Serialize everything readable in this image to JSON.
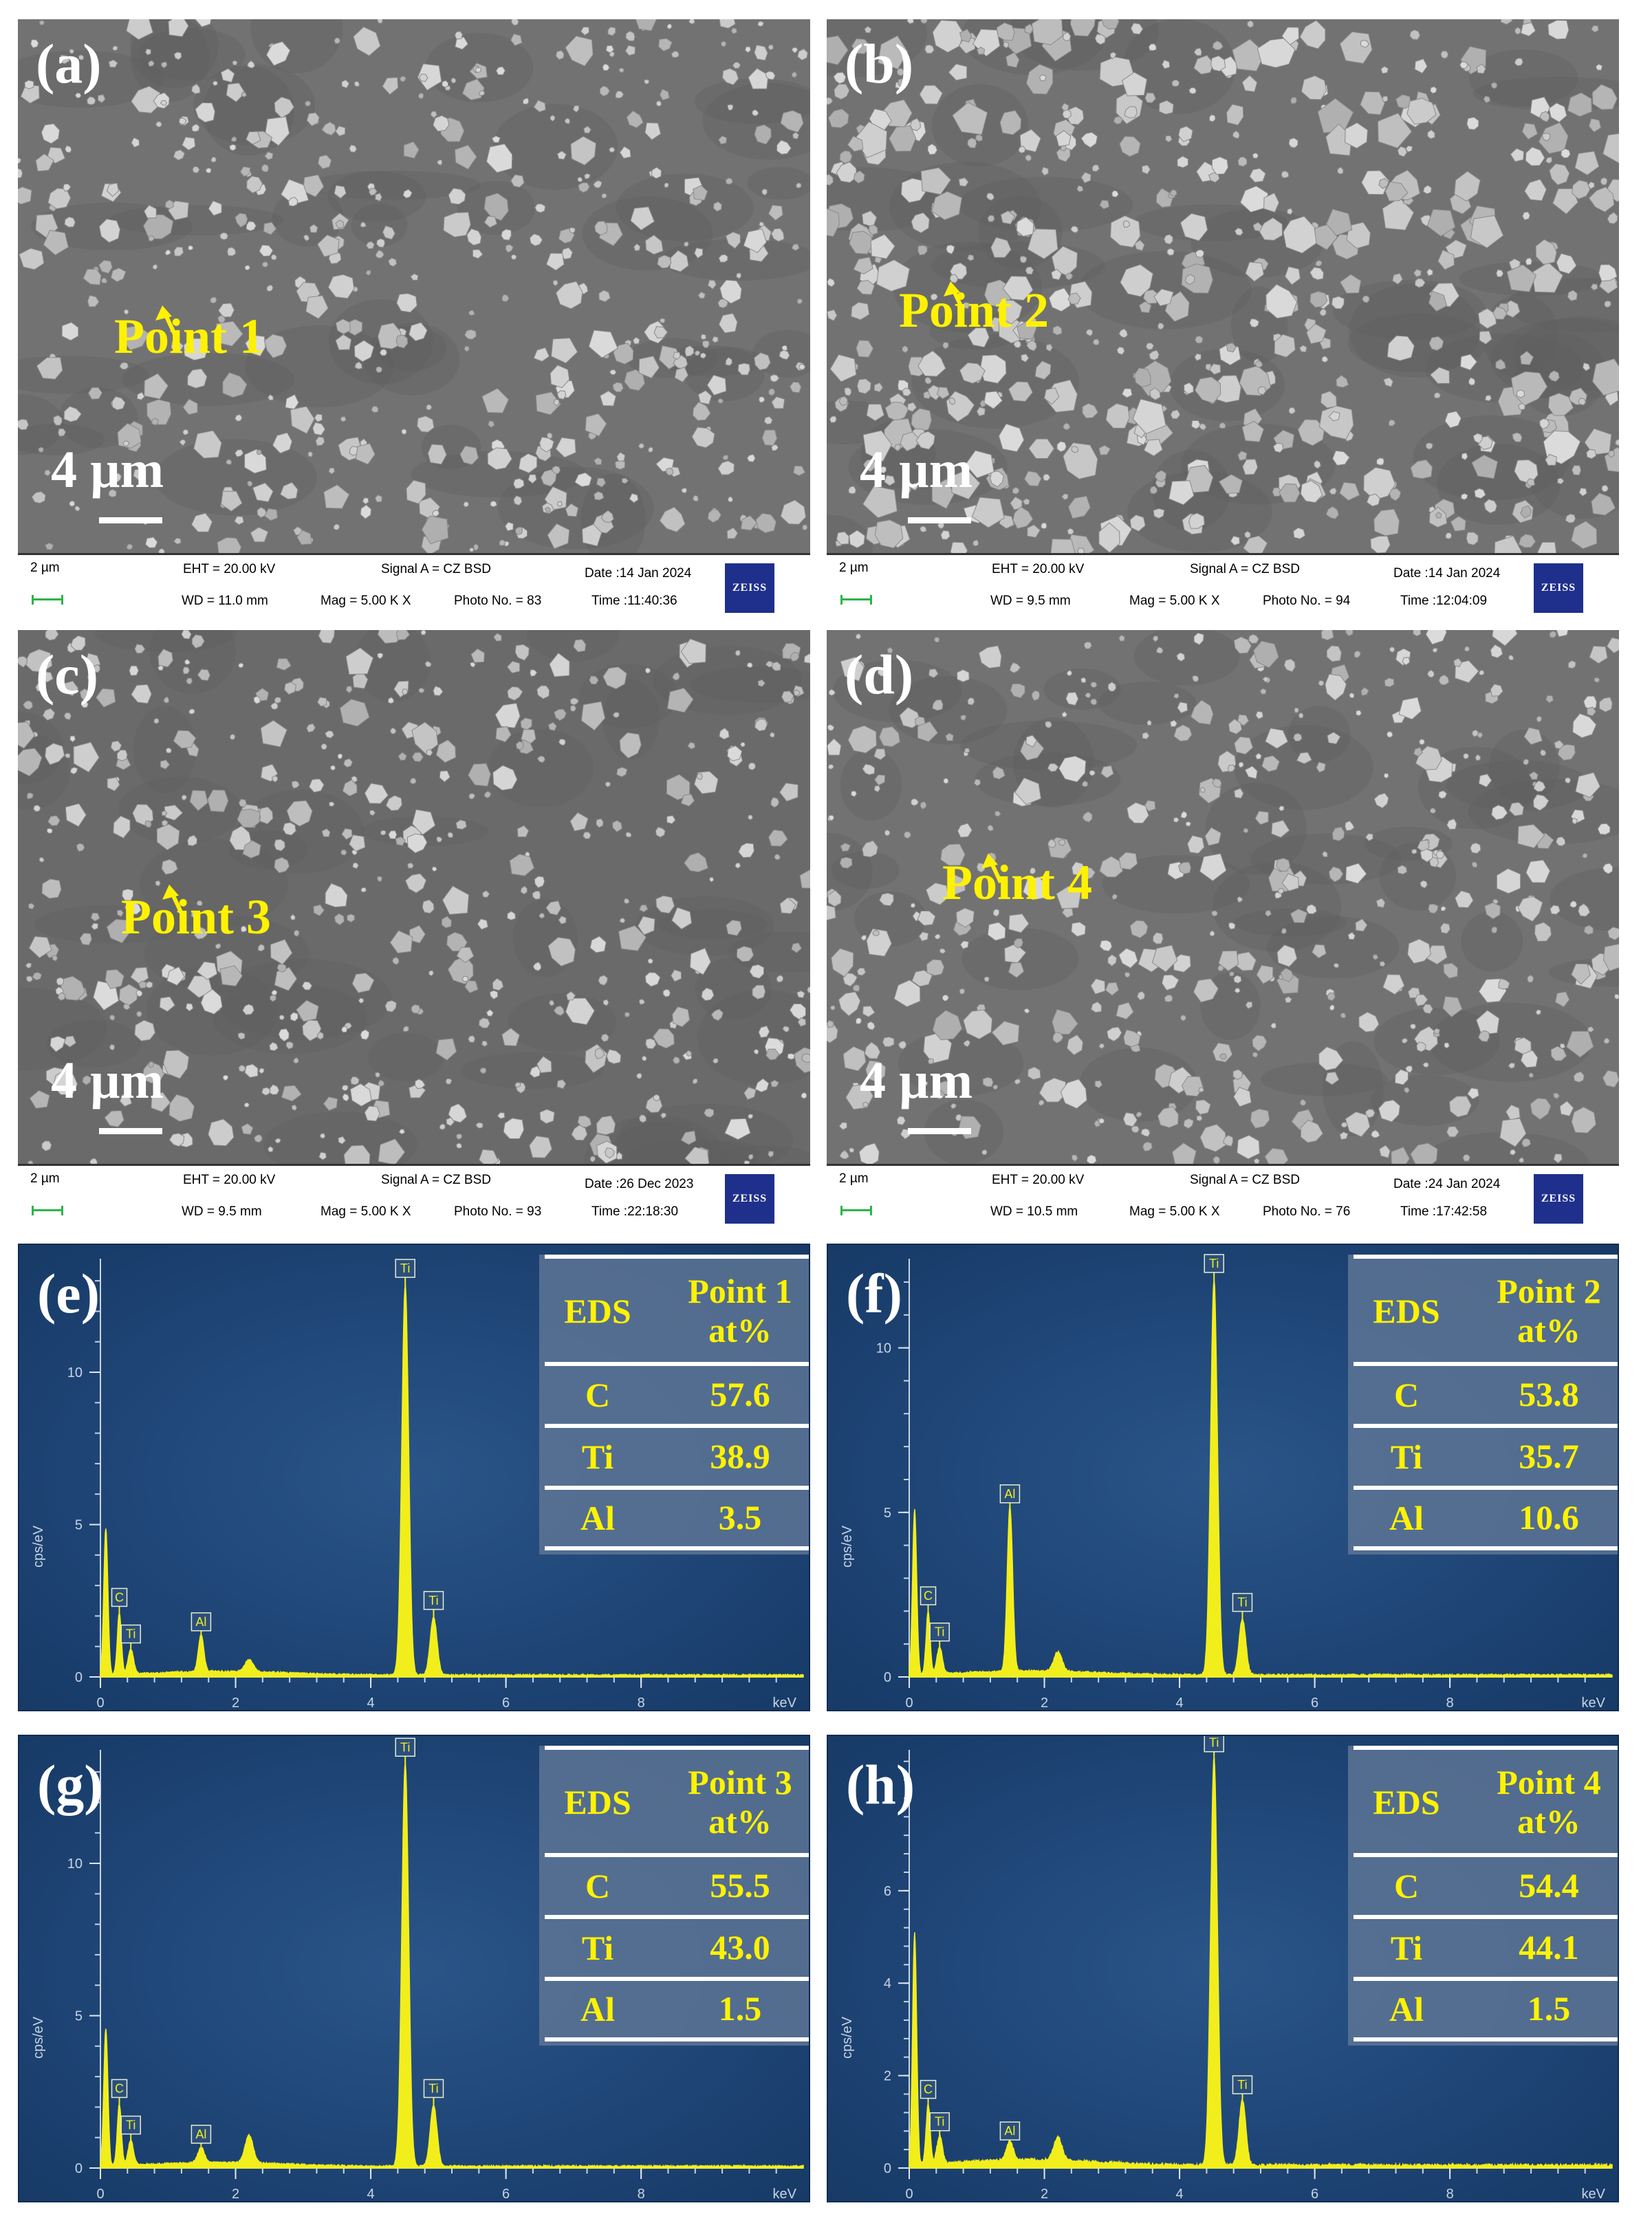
{
  "sem_panels": [
    {
      "letter": "(a)",
      "point": "Point 1",
      "scale": "4 µm",
      "info": {
        "scale": "2 µm",
        "eht": "EHT = 20.00 kV",
        "wd": "WD = 11.0 mm",
        "signal": "Signal A = CZ BSD",
        "mag": "Mag =  5.00 K X",
        "photo": "Photo No. = 83",
        "date": "Date :14 Jan 2024",
        "time": "Time :11:40:36",
        "logo": "ZEISS"
      }
    },
    {
      "letter": "(b)",
      "point": "Point 2",
      "scale": "4 µm",
      "info": {
        "scale": "2 µm",
        "eht": "EHT = 20.00 kV",
        "wd": "WD =  9.5 mm",
        "signal": "Signal A = CZ BSD",
        "mag": "Mag =  5.00 K X",
        "photo": "Photo No. = 94",
        "date": "Date :14 Jan 2024",
        "time": "Time :12:04:09",
        "logo": "ZEISS"
      }
    },
    {
      "letter": "(c)",
      "point": "Point 3",
      "scale": "4 µm",
      "info": {
        "scale": "2 µm",
        "eht": "EHT = 20.00 kV",
        "wd": "WD =  9.5 mm",
        "signal": "Signal A = CZ BSD",
        "mag": "Mag =  5.00 K X",
        "photo": "Photo No. = 93",
        "date": "Date :26 Dec 2023",
        "time": "Time :22:18:30",
        "logo": "ZEISS"
      }
    },
    {
      "letter": "(d)",
      "point": "Point 4",
      "scale": "4 µm",
      "info": {
        "scale": "2 µm",
        "eht": "EHT = 20.00 kV",
        "wd": "WD = 10.5 mm",
        "signal": "Signal A = CZ BSD",
        "mag": "Mag =  5.00 K X",
        "photo": "Photo No. = 76",
        "date": "Date :24 Jan 2024",
        "time": "Time :17:42:58",
        "logo": "ZEISS"
      }
    }
  ],
  "chart_data": [
    {
      "type": "line",
      "letter": "(e)",
      "ylabel": "cps/eV",
      "xlabel": "keV",
      "xlim": [
        0,
        10.4
      ],
      "ylim": [
        0,
        13.5
      ],
      "xticks": [
        0,
        2,
        4,
        6,
        8
      ],
      "yticks": [
        0,
        5,
        10
      ],
      "peaks": [
        {
          "x": 0.08,
          "y": 4.8,
          "w": 0.03
        },
        {
          "x": 0.28,
          "y": 2.0,
          "w": 0.03,
          "label": "C"
        },
        {
          "x": 0.45,
          "y": 0.8,
          "w": 0.04,
          "label": "Ti"
        },
        {
          "x": 1.49,
          "y": 1.2,
          "w": 0.04,
          "label": "Al"
        },
        {
          "x": 2.2,
          "y": 0.4,
          "w": 0.06
        },
        {
          "x": 4.51,
          "y": 12.8,
          "w": 0.05,
          "label": "Ti"
        },
        {
          "x": 4.93,
          "y": 1.9,
          "w": 0.05,
          "label": "Ti"
        }
      ],
      "table": {
        "header": [
          "EDS",
          "Point 1",
          "at%"
        ],
        "rows": [
          [
            "C",
            "57.6"
          ],
          [
            "Ti",
            "38.9"
          ],
          [
            "Al",
            "3.5"
          ]
        ]
      }
    },
    {
      "type": "line",
      "letter": "(f)",
      "ylabel": "cps/eV",
      "xlabel": "keV",
      "xlim": [
        0,
        10.4
      ],
      "ylim": [
        0,
        12.5
      ],
      "xticks": [
        0,
        2,
        4,
        6,
        8
      ],
      "yticks": [
        0,
        5,
        10
      ],
      "peaks": [
        {
          "x": 0.08,
          "y": 5.0,
          "w": 0.03
        },
        {
          "x": 0.28,
          "y": 1.9,
          "w": 0.03,
          "label": "C"
        },
        {
          "x": 0.45,
          "y": 0.8,
          "w": 0.04,
          "label": "Ti"
        },
        {
          "x": 1.49,
          "y": 5.0,
          "w": 0.04,
          "label": "Al"
        },
        {
          "x": 2.2,
          "y": 0.6,
          "w": 0.06
        },
        {
          "x": 4.51,
          "y": 12.0,
          "w": 0.05,
          "label": "Ti"
        },
        {
          "x": 4.93,
          "y": 1.7,
          "w": 0.05,
          "label": "Ti"
        }
      ],
      "table": {
        "header": [
          "EDS",
          "Point 2",
          "at%"
        ],
        "rows": [
          [
            "C",
            "53.8"
          ],
          [
            "Ti",
            "35.7"
          ],
          [
            "Al",
            "10.6"
          ]
        ]
      }
    },
    {
      "type": "line",
      "letter": "(g)",
      "ylabel": "cps/eV",
      "xlabel": "keV",
      "xlim": [
        0,
        10.4
      ],
      "ylim": [
        0,
        13.5
      ],
      "xticks": [
        0,
        2,
        4,
        6,
        8
      ],
      "yticks": [
        0,
        5,
        10
      ],
      "peaks": [
        {
          "x": 0.08,
          "y": 4.5,
          "w": 0.03
        },
        {
          "x": 0.28,
          "y": 2.0,
          "w": 0.03,
          "label": "C"
        },
        {
          "x": 0.45,
          "y": 0.8,
          "w": 0.04,
          "label": "Ti"
        },
        {
          "x": 1.49,
          "y": 0.5,
          "w": 0.05,
          "label": "Al"
        },
        {
          "x": 2.2,
          "y": 0.9,
          "w": 0.06
        },
        {
          "x": 4.51,
          "y": 13.2,
          "w": 0.05,
          "label": "Ti"
        },
        {
          "x": 4.93,
          "y": 2.0,
          "w": 0.05,
          "label": "Ti"
        }
      ],
      "table": {
        "header": [
          "EDS",
          "Point 3",
          "at%"
        ],
        "rows": [
          [
            "C",
            "55.5"
          ],
          [
            "Ti",
            "43.0"
          ],
          [
            "Al",
            "1.5"
          ]
        ]
      }
    },
    {
      "type": "line",
      "letter": "(h)",
      "ylabel": "cps/eV",
      "xlabel": "keV",
      "xlim": [
        0,
        10.4
      ],
      "ylim": [
        0,
        8.9
      ],
      "xticks": [
        0,
        2,
        4,
        6,
        8
      ],
      "yticks": [
        0,
        2,
        4,
        6
      ],
      "peaks": [
        {
          "x": 0.08,
          "y": 5.0,
          "w": 0.03
        },
        {
          "x": 0.28,
          "y": 1.3,
          "w": 0.03,
          "label": "C"
        },
        {
          "x": 0.45,
          "y": 0.6,
          "w": 0.04,
          "label": "Ti"
        },
        {
          "x": 1.49,
          "y": 0.4,
          "w": 0.05,
          "label": "Al"
        },
        {
          "x": 2.2,
          "y": 0.5,
          "w": 0.06
        },
        {
          "x": 4.51,
          "y": 8.8,
          "w": 0.05,
          "label": "Ti"
        },
        {
          "x": 4.93,
          "y": 1.4,
          "w": 0.05,
          "label": "Ti"
        }
      ],
      "table": {
        "header": [
          "EDS",
          "Point 4",
          "at%"
        ],
        "rows": [
          [
            "C",
            "54.4"
          ],
          [
            "Ti",
            "44.1"
          ],
          [
            "Al",
            "1.5"
          ]
        ]
      }
    }
  ],
  "colors": {
    "spectrum": "#f2ee1c",
    "label": "#fff200",
    "background": "#1e4475"
  }
}
